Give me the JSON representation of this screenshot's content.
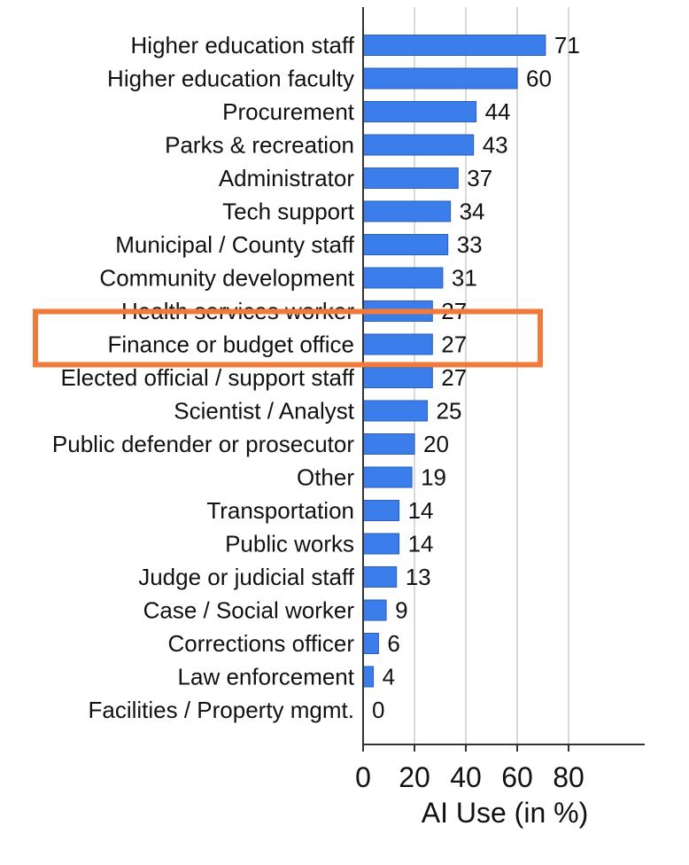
{
  "chart_data": {
    "type": "bar",
    "orientation": "horizontal",
    "categories": [
      "Higher education staff",
      "Higher education faculty",
      "Procurement",
      "Parks & recreation",
      "Administrator",
      "Tech support",
      "Municipal / County staff",
      "Community development",
      "Health services worker",
      "Finance or budget office",
      "Elected official / support staff",
      "Scientist / Analyst",
      "Public defender or prosecutor",
      "Other",
      "Transportation",
      "Public works",
      "Judge or judicial staff",
      "Case / Social worker",
      "Corrections officer",
      "Law enforcement",
      "Facilities / Property mgmt."
    ],
    "values": [
      71,
      60,
      44,
      43,
      37,
      34,
      33,
      31,
      27,
      27,
      27,
      25,
      20,
      19,
      14,
      14,
      13,
      9,
      6,
      4,
      0
    ],
    "xlabel": "AI Use (in %)",
    "xticks": [
      0,
      20,
      40,
      60,
      80
    ],
    "xlim": [
      0,
      110
    ],
    "grid": "vertical",
    "highlighted_category": "Finance or budget office",
    "colors": {
      "bar": "#3b7dea",
      "bar_edge": "#2a5fb8",
      "grid": "#d9d9d9",
      "highlight": "#f07a3a",
      "axis": "#333333"
    }
  }
}
